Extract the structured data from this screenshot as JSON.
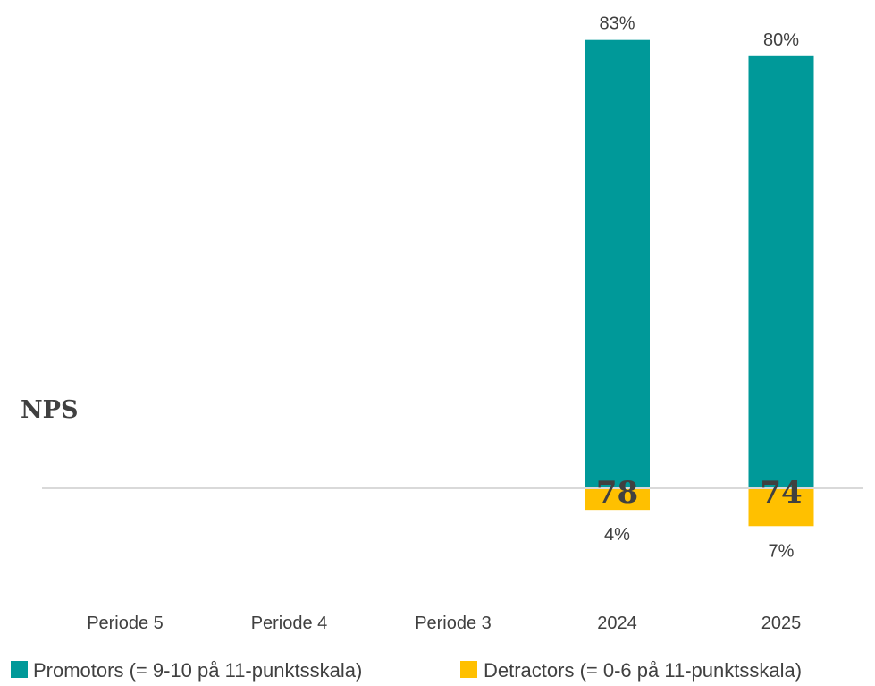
{
  "chart_data": {
    "type": "bar",
    "stacked": "diverging",
    "title": "",
    "side_label": "NPS",
    "categories": [
      "Periode 5",
      "Periode 4",
      "Periode 3",
      "2024",
      "2025"
    ],
    "series": [
      {
        "name": "Promotors (= 9-10 på 11-punktsskala)",
        "color": "#009999",
        "direction": "up",
        "values": [
          null,
          null,
          null,
          83,
          80
        ],
        "labels": [
          "",
          "",
          "",
          "83%",
          "80%"
        ]
      },
      {
        "name": "Detractors (= 0-6 på 11-punktsskala)",
        "color": "#FFC000",
        "direction": "down",
        "values": [
          null,
          null,
          null,
          4,
          7
        ],
        "labels": [
          "",
          "",
          "",
          "4%",
          "7%"
        ]
      }
    ],
    "nps": [
      "",
      "",
      "",
      "78",
      "74"
    ],
    "baseline_color": "#D9D9D9",
    "text_color": "#404040",
    "legend_position": "bottom",
    "grid": false
  }
}
